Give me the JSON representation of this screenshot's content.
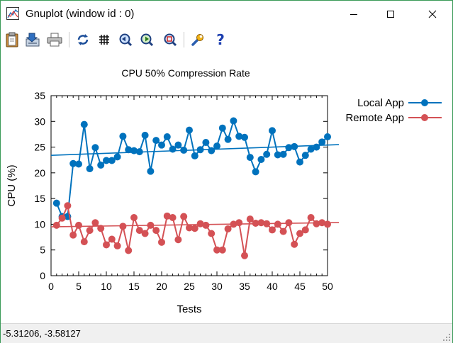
{
  "window": {
    "title": "Gnuplot (window id : 0)",
    "minimize_glyph": "—",
    "maximize_glyph": "☐",
    "close_glyph": "✕"
  },
  "toolbar": {
    "icons": [
      "copy-clipboard-icon",
      "save-icon",
      "print-icon",
      "replot-icon",
      "grid-icon",
      "zoom-previous-icon",
      "zoom-next-icon",
      "autoscale-icon",
      "options-icon",
      "help-icon"
    ],
    "help_glyph": "?"
  },
  "status": {
    "coordinates": "-5.31206, -3.58127"
  },
  "colors": {
    "local": "#0072bd",
    "remote": "#d45155",
    "border": "#3a9a57"
  },
  "chart_data": {
    "type": "line",
    "title": "CPU 50% Compression Rate",
    "xlabel": "Tests",
    "ylabel": "CPU (%)",
    "xlim": [
      0,
      50
    ],
    "ylim": [
      0,
      35
    ],
    "xticks": [
      "0",
      "5",
      "10",
      "15",
      "20",
      "25",
      "30",
      "35",
      "40",
      "45",
      "50"
    ],
    "yticks": [
      "0",
      "5",
      "10",
      "15",
      "20",
      "25",
      "30",
      "35"
    ],
    "legend_position": "top-right outside",
    "grid": false,
    "series": [
      {
        "name": "Local App",
        "x": [
          1,
          2,
          3,
          4,
          5,
          6,
          7,
          8,
          9,
          10,
          11,
          12,
          13,
          14,
          15,
          16,
          17,
          18,
          19,
          20,
          21,
          22,
          23,
          24,
          25,
          26,
          27,
          28,
          29,
          30,
          31,
          32,
          33,
          34,
          35,
          36,
          37,
          38,
          39,
          40,
          41,
          42,
          43,
          44,
          45,
          46,
          47,
          48,
          49,
          50
        ],
        "values": [
          14.1,
          11.5,
          11.5,
          21.8,
          21.7,
          29.4,
          20.8,
          24.9,
          21.5,
          22.4,
          22.4,
          23.1,
          27.1,
          24.5,
          24.3,
          24.1,
          27.3,
          20.3,
          26.3,
          25.4,
          27.0,
          24.6,
          25.4,
          24.4,
          28.3,
          23.3,
          24.5,
          25.9,
          24.3,
          25.2,
          28.7,
          26.5,
          30.1,
          27.1,
          26.9,
          23.0,
          20.2,
          22.6,
          23.6,
          28.2,
          23.5,
          23.6,
          24.9,
          25.1,
          22.1,
          23.4,
          24.6,
          25.0,
          26.0,
          27.0
        ],
        "trend": [
          23.4,
          25.4
        ]
      },
      {
        "name": "Remote App",
        "x": [
          1,
          2,
          3,
          4,
          5,
          6,
          7,
          8,
          9,
          10,
          11,
          12,
          13,
          14,
          15,
          16,
          17,
          18,
          19,
          20,
          21,
          22,
          23,
          24,
          25,
          26,
          27,
          28,
          29,
          30,
          31,
          32,
          33,
          34,
          35,
          36,
          37,
          38,
          39,
          40,
          41,
          42,
          43,
          44,
          45,
          46,
          47,
          48,
          49,
          50
        ],
        "values": [
          9.8,
          11.2,
          13.6,
          7.9,
          9.8,
          6.6,
          8.8,
          10.3,
          9.2,
          6.0,
          7.1,
          5.8,
          9.6,
          4.9,
          11.3,
          8.8,
          8.2,
          9.8,
          8.8,
          6.5,
          11.6,
          11.3,
          7.0,
          11.5,
          9.3,
          9.2,
          10.1,
          9.8,
          8.2,
          5.0,
          5.0,
          9.1,
          10.0,
          10.3,
          3.9,
          11.0,
          10.2,
          10.3,
          10.1,
          8.9,
          10.0,
          8.6,
          10.3,
          6.1,
          8.2,
          8.9,
          11.3,
          10.1,
          10.3,
          10.0
        ],
        "trend": [
          9.5,
          10.3
        ]
      }
    ]
  }
}
